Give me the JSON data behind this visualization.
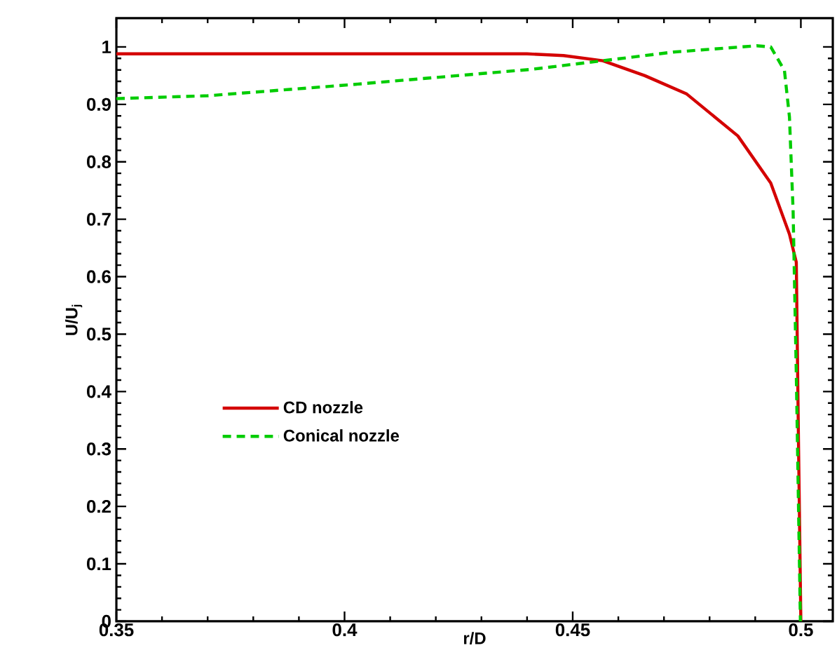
{
  "chart_data": {
    "type": "line",
    "xlabel": "r/D",
    "ylabel": "U/U$_{j}$",
    "xlim": [
      0.35,
      0.507
    ],
    "ylim": [
      0,
      1.05
    ],
    "xticks": [
      0.35,
      0.4,
      0.45,
      0.5
    ],
    "yticks": [
      0,
      0.1,
      0.2,
      0.3,
      0.4,
      0.5,
      0.6,
      0.7,
      0.8,
      0.9,
      1
    ],
    "grid": false,
    "legend": "left",
    "marker": "none",
    "series": [
      {
        "name": "CD nozzle",
        "color": "#d40000",
        "line_style": "solid",
        "x": [
          0.35,
          0.44,
          0.448,
          0.4566,
          0.4658,
          0.475,
          0.4862,
          0.4934,
          0.4975,
          0.499,
          0.4995,
          0.5
        ],
        "values": [
          0.988,
          0.988,
          0.985,
          0.976,
          0.95,
          0.918,
          0.845,
          0.763,
          0.674,
          0.625,
          0.3,
          0
        ]
      },
      {
        "name": "Conical nozzle",
        "color": "#00cc00",
        "line_style": "dashed",
        "x": [
          0.35,
          0.37,
          0.401,
          0.441,
          0.4566,
          0.472,
          0.4903,
          0.4934,
          0.4964,
          0.4975,
          0.4983,
          0.499,
          0.4999
        ],
        "values": [
          0.91,
          0.915,
          0.934,
          0.961,
          0.976,
          0.991,
          1.002,
          1.0,
          0.959,
          0.878,
          0.715,
          0.43,
          0
        ]
      }
    ]
  }
}
